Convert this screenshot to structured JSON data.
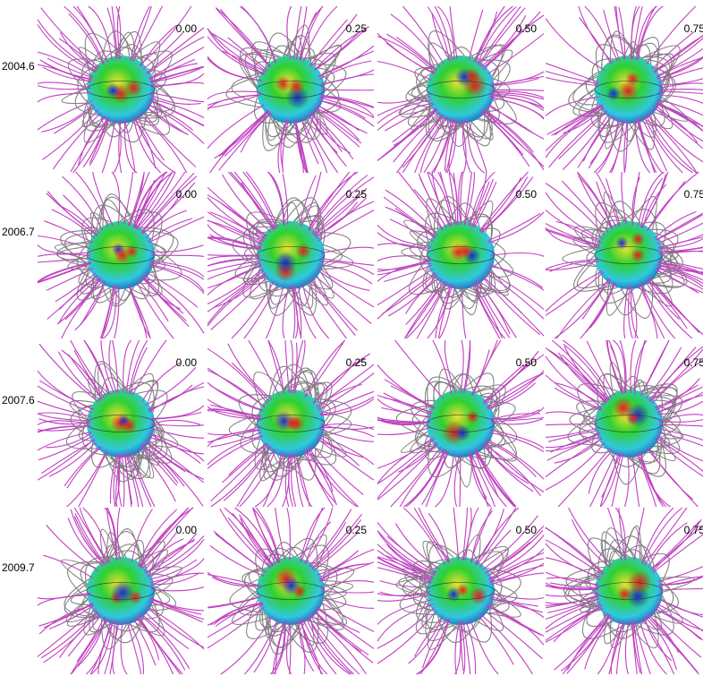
{
  "figure": {
    "rows": [
      {
        "epoch": "2004.6",
        "phases": [
          "0.00",
          "0.25",
          "0.50",
          "0.75"
        ]
      },
      {
        "epoch": "2006.7",
        "phases": [
          "0.00",
          "0.25",
          "0.50",
          "0.75"
        ]
      },
      {
        "epoch": "2007.6",
        "phases": [
          "0.00",
          "0.25",
          "0.50",
          "0.75"
        ]
      },
      {
        "epoch": "2009.7",
        "phases": [
          "0.00",
          "0.25",
          "0.50",
          "0.75"
        ]
      }
    ],
    "colors": {
      "open_field_lines": "#c040c0",
      "closed_field_lines": "#808080",
      "surface_positive": "#e02020",
      "surface_negative": "#1a2ad0",
      "surface_mid_green": "#30d030",
      "surface_mid_cyan": "#30c8e0",
      "surface_mid_yellow": "#e8e030"
    }
  }
}
